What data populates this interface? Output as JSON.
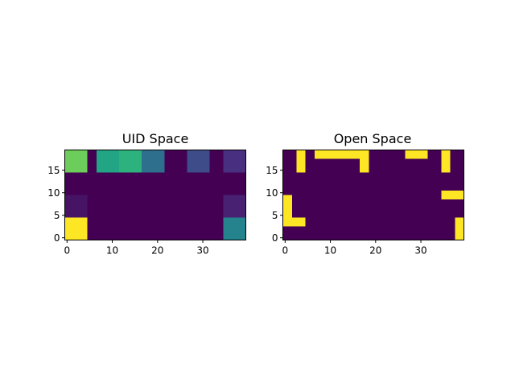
{
  "chart_data": [
    {
      "type": "heatmap",
      "title": "UID Space",
      "xlabel": "",
      "ylabel": "",
      "xlim": [
        -0.5,
        39.5
      ],
      "ylim": [
        -0.5,
        19.5
      ],
      "xticks": [
        "0",
        "10",
        "20",
        "30"
      ],
      "yticks": [
        "0",
        "5",
        "10",
        "15"
      ],
      "colormap": "viridis",
      "background_color": "#440154",
      "grid": false,
      "cells": [
        {
          "x0": -0.5,
          "x1": 4.5,
          "y0": 14.5,
          "y1": 19.5,
          "color": "#6ccd5a"
        },
        {
          "x0": 6.5,
          "x1": 11.5,
          "y0": 14.5,
          "y1": 19.5,
          "color": "#21a585"
        },
        {
          "x0": 11.5,
          "x1": 16.5,
          "y0": 14.5,
          "y1": 19.5,
          "color": "#2db27d"
        },
        {
          "x0": 16.5,
          "x1": 21.5,
          "y0": 14.5,
          "y1": 19.5,
          "color": "#2e6f8e"
        },
        {
          "x0": 26.5,
          "x1": 31.5,
          "y0": 14.5,
          "y1": 19.5,
          "color": "#3e4c8a"
        },
        {
          "x0": 34.5,
          "x1": 39.5,
          "y0": 14.5,
          "y1": 19.5,
          "color": "#482f7f"
        },
        {
          "x0": -0.5,
          "x1": 4.5,
          "y0": 4.5,
          "y1": 9.5,
          "color": "#471365"
        },
        {
          "x0": 34.5,
          "x1": 39.5,
          "y0": 4.5,
          "y1": 9.5,
          "color": "#482172"
        },
        {
          "x0": -0.5,
          "x1": 4.5,
          "y0": -0.5,
          "y1": 4.5,
          "color": "#fde725"
        },
        {
          "x0": 34.5,
          "x1": 39.5,
          "y0": -0.5,
          "y1": 4.5,
          "color": "#25838e"
        }
      ]
    },
    {
      "type": "heatmap",
      "title": "Open Space",
      "xlabel": "",
      "ylabel": "",
      "xlim": [
        -0.5,
        39.5
      ],
      "ylim": [
        -0.5,
        19.5
      ],
      "xticks": [
        "0",
        "10",
        "20",
        "30"
      ],
      "yticks": [
        "0",
        "5",
        "10",
        "15"
      ],
      "colormap": "viridis",
      "background_color": "#440154",
      "grid": false,
      "cells": [
        {
          "x0": 2.5,
          "x1": 4.5,
          "y0": 14.5,
          "y1": 19.5,
          "color": "#fde725"
        },
        {
          "x0": 6.5,
          "x1": 18.5,
          "y0": 17.5,
          "y1": 19.5,
          "color": "#fde725"
        },
        {
          "x0": 16.5,
          "x1": 18.5,
          "y0": 14.5,
          "y1": 17.5,
          "color": "#fde725"
        },
        {
          "x0": 26.5,
          "x1": 31.5,
          "y0": 17.5,
          "y1": 19.5,
          "color": "#fde725"
        },
        {
          "x0": 34.5,
          "x1": 36.5,
          "y0": 14.5,
          "y1": 19.5,
          "color": "#fde725"
        },
        {
          "x0": 34.5,
          "x1": 39.5,
          "y0": 8.5,
          "y1": 10.5,
          "color": "#fde725"
        },
        {
          "x0": -0.5,
          "x1": 1.5,
          "y0": 2.5,
          "y1": 9.5,
          "color": "#fde725"
        },
        {
          "x0": -0.5,
          "x1": 4.5,
          "y0": 2.5,
          "y1": 4.5,
          "color": "#fde725"
        },
        {
          "x0": 37.5,
          "x1": 39.5,
          "y0": -0.5,
          "y1": 4.5,
          "color": "#fde725"
        }
      ]
    }
  ]
}
